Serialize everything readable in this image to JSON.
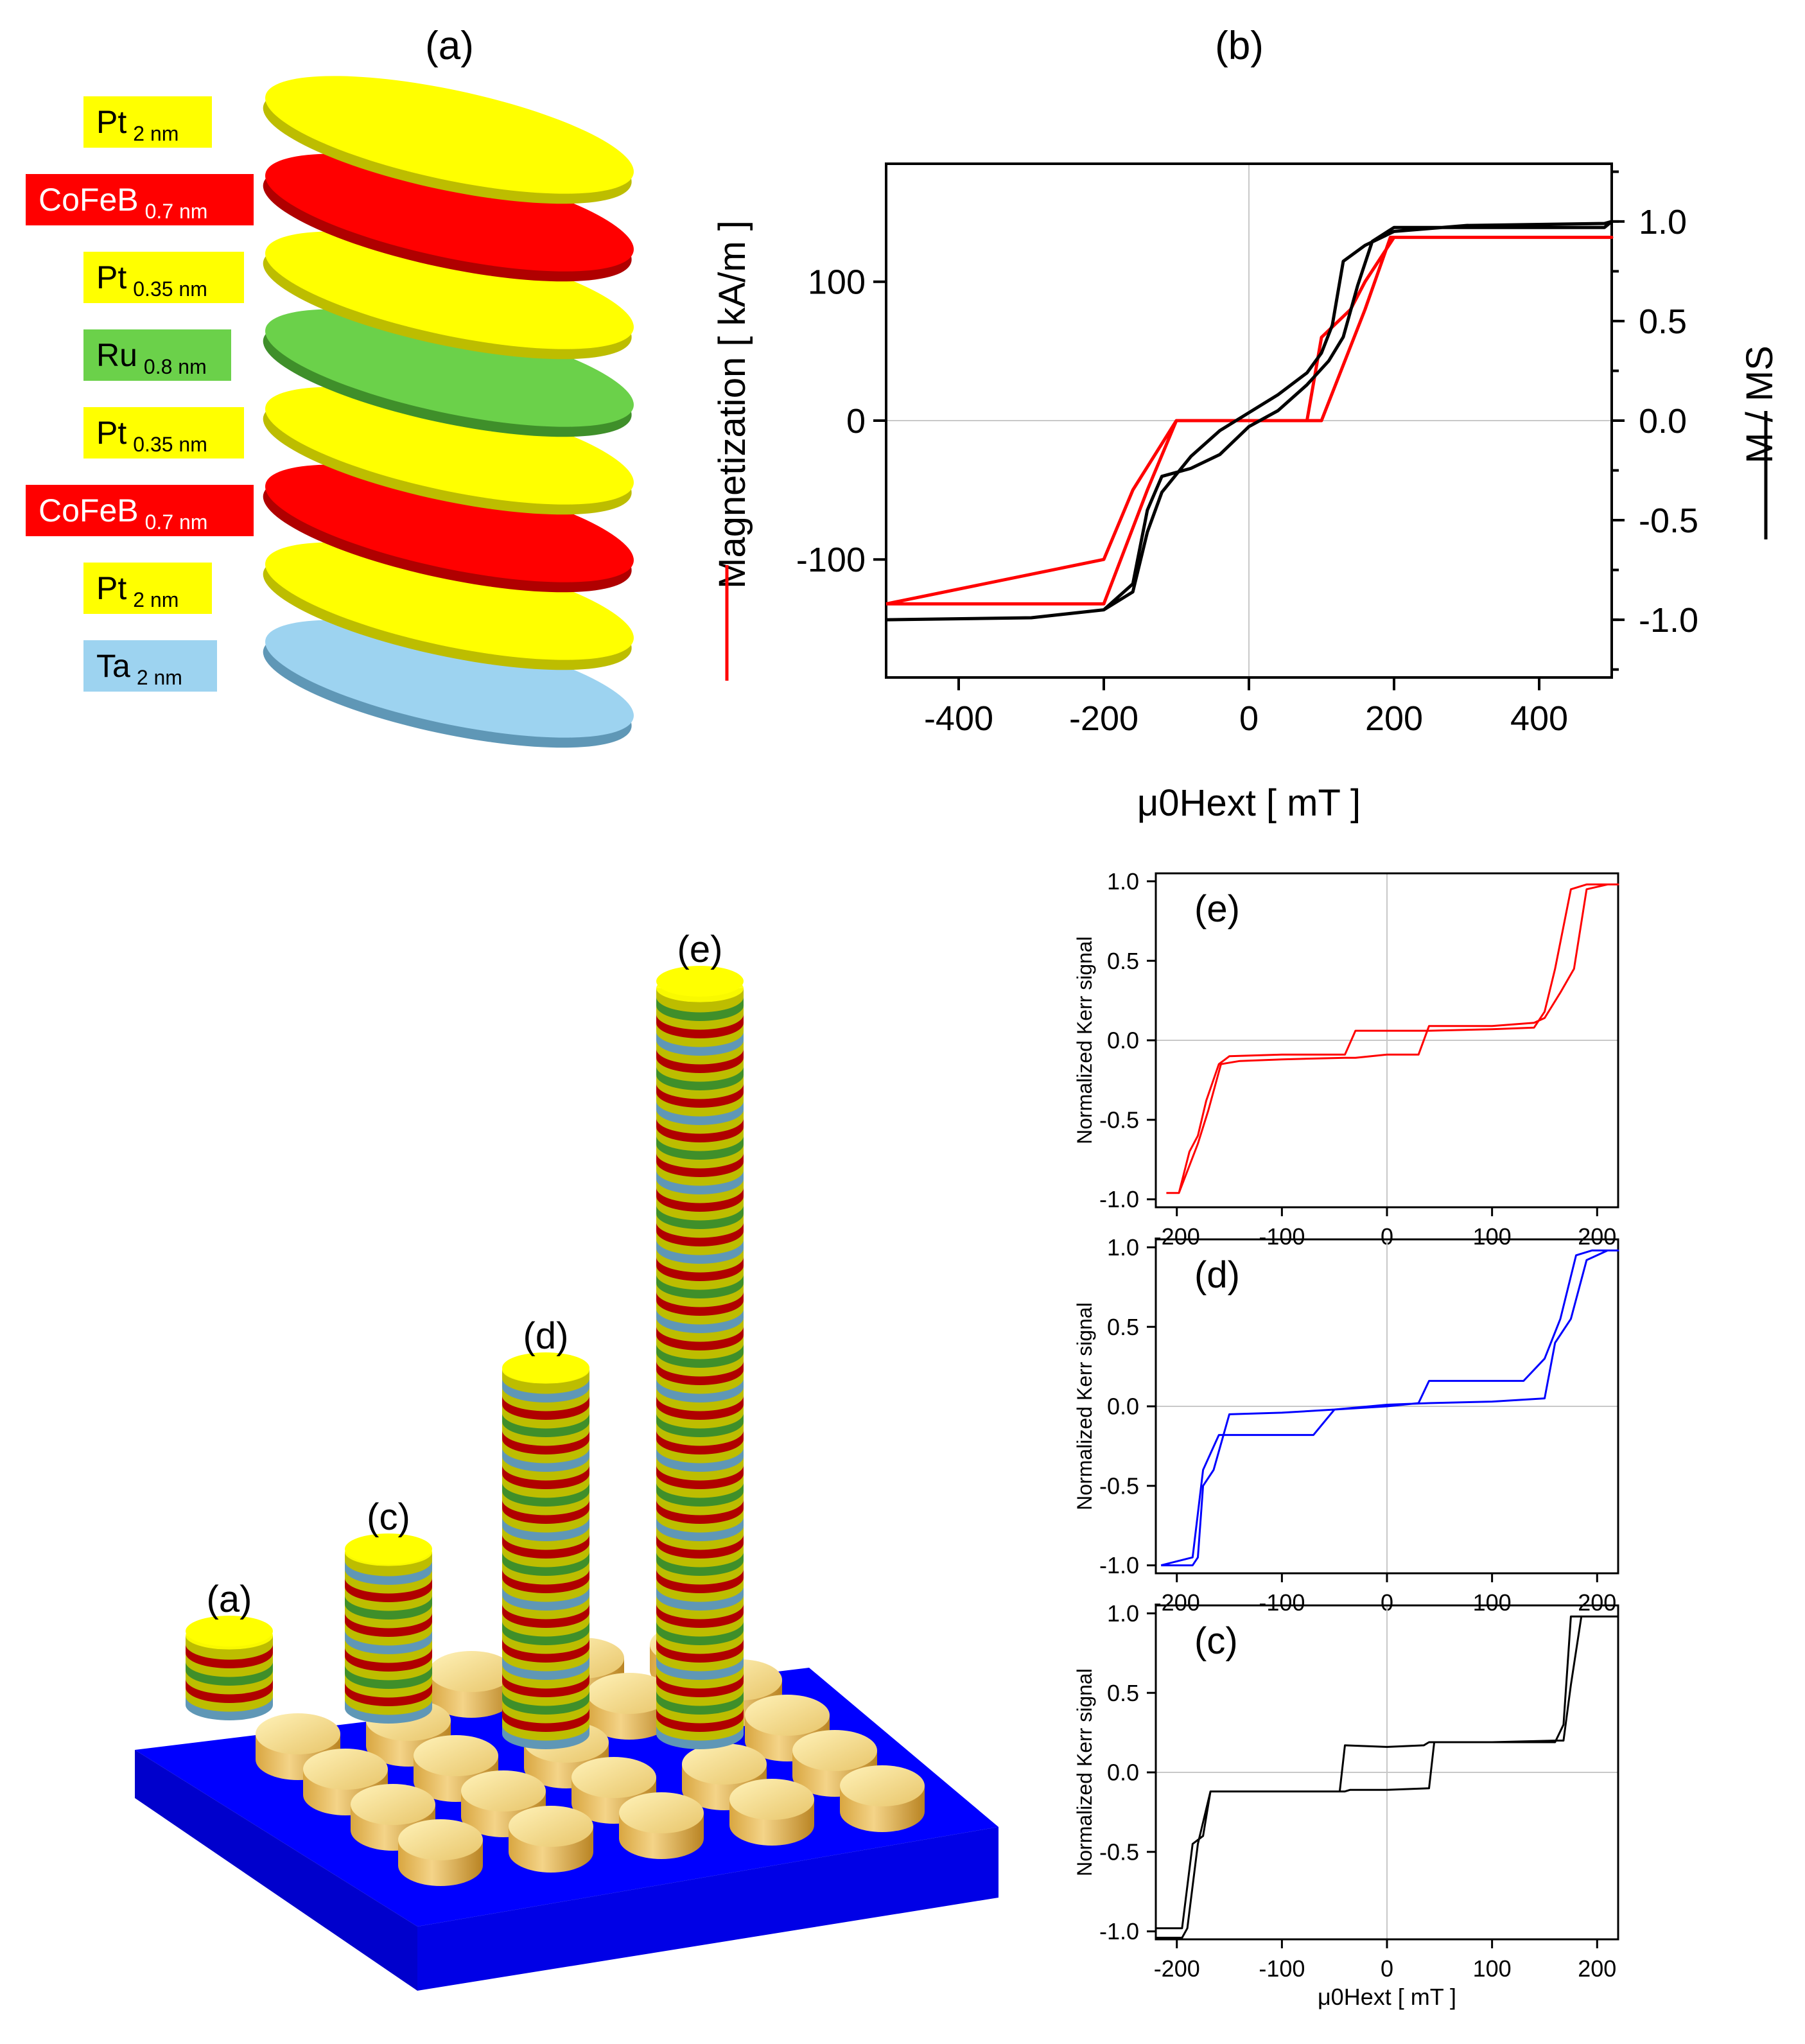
{
  "panel_labels": {
    "a_top": "(a)",
    "b_top": "(b)",
    "a_pillar": "(a)",
    "c_pillar": "(c)",
    "d_pillar": "(d)",
    "e_pillar": "(e)"
  },
  "layers": [
    {
      "name": "Pt",
      "thickness": "2 nm",
      "color": "#ffff00",
      "edge": "#bdbd00"
    },
    {
      "name": "CoFeB",
      "thickness": "0.7 nm",
      "color": "#ff0000",
      "edge": "#b00000"
    },
    {
      "name": "Pt",
      "thickness": "0.35 nm",
      "color": "#ffff00",
      "edge": "#bdbd00"
    },
    {
      "name": "Ru",
      "thickness": "0.8 nm",
      "color": "#6bd14a",
      "edge": "#3f8f2a"
    },
    {
      "name": "Pt",
      "thickness": "0.35 nm",
      "color": "#ffff00",
      "edge": "#bdbd00"
    },
    {
      "name": "CoFeB",
      "thickness": "0.7 nm",
      "color": "#ff0000",
      "edge": "#b00000"
    },
    {
      "name": "Pt",
      "thickness": "2 nm",
      "color": "#ffff00",
      "edge": "#bdbd00"
    },
    {
      "name": "Ta",
      "thickness": "2 nm",
      "color": "#9dd3f0",
      "edge": "#5f97b6"
    }
  ],
  "chart_data": [
    {
      "id": "b",
      "type": "line",
      "title": "(b)",
      "xlabel": "μ0Hext [ mT ]",
      "ylabel": "Magnetization [ kA/m ]",
      "y2label": "M / MS",
      "xlim": [
        -500,
        500
      ],
      "ylim": [
        -185,
        185
      ],
      "y2lim": [
        -1.29,
        1.29
      ],
      "xticks": [
        -400,
        -200,
        0,
        200,
        400
      ],
      "yticks": [
        -100,
        0,
        100
      ],
      "y2ticks": [
        -1.0,
        -0.5,
        0.0,
        0.5,
        1.0
      ],
      "xtick_labels": [
        "-400",
        "-200",
        "0",
        "200",
        "400"
      ],
      "ytick_labels": [
        "-100",
        "0",
        "100"
      ],
      "y2tick_labels": [
        "-1.0",
        "-0.5",
        "0.0",
        "0.5",
        "1.0"
      ],
      "series": [
        {
          "name": "Magnetization",
          "axis": "left",
          "color": "#ff0000",
          "x": [
            -500,
            -200,
            -140,
            -100,
            -50,
            0,
            60,
            100,
            160,
            195,
            500,
            490,
            200,
            160,
            140,
            100,
            80,
            0,
            -60,
            -100,
            -160,
            -200,
            -500
          ],
          "y": [
            -132,
            -132,
            -50,
            0,
            0,
            0,
            0,
            0,
            80,
            132,
            132,
            132,
            132,
            100,
            80,
            60,
            0,
            0,
            0,
            0,
            -50,
            -100,
            -132
          ]
        },
        {
          "name": "M / MS",
          "axis": "right",
          "color": "#000000",
          "x": [
            -500,
            -300,
            -200,
            -160,
            -140,
            -120,
            -80,
            -40,
            0,
            40,
            80,
            110,
            130,
            150,
            170,
            200,
            300,
            490,
            500,
            490,
            300,
            200,
            160,
            130,
            115,
            100,
            80,
            40,
            0,
            -40,
            -80,
            -100,
            -120,
            -140,
            -160,
            -200,
            -300,
            -500
          ],
          "y": [
            -1.0,
            -0.99,
            -0.95,
            -0.82,
            -0.45,
            -0.28,
            -0.24,
            -0.17,
            -0.03,
            0.05,
            0.18,
            0.3,
            0.42,
            0.68,
            0.9,
            0.97,
            0.97,
            0.97,
            1.0,
            0.99,
            0.98,
            0.95,
            0.88,
            0.8,
            0.48,
            0.34,
            0.24,
            0.13,
            0.04,
            -0.05,
            -0.18,
            -0.27,
            -0.36,
            -0.56,
            -0.86,
            -0.95,
            -0.99,
            -1.0
          ]
        }
      ]
    },
    {
      "id": "e",
      "type": "line",
      "title": "(e)",
      "xlabel": "",
      "ylabel": "Normalized Kerr signal",
      "xlim": [
        -220,
        220
      ],
      "ylim": [
        -1.05,
        1.05
      ],
      "xticks": [
        -200,
        -100,
        0,
        100,
        200
      ],
      "yticks": [
        -1.0,
        -0.5,
        0.0,
        0.5,
        1.0
      ],
      "xtick_labels": [
        "-200",
        "-100",
        "0",
        "100",
        "200"
      ],
      "ytick_labels": [
        "-1.0",
        "-0.5",
        "0.0",
        "0.5",
        "1.0"
      ],
      "series": [
        {
          "name": "loop",
          "color": "#ff0000",
          "x": [
            -210,
            -198,
            -188,
            -180,
            -172,
            -160,
            -150,
            -100,
            -40,
            -30,
            0,
            30,
            40,
            100,
            140,
            150,
            160,
            175,
            190,
            220,
            210,
            190,
            178,
            165,
            150,
            140,
            100,
            40,
            30,
            0,
            -30,
            -40,
            -100,
            -140,
            -158,
            -170,
            -180,
            -198,
            -210
          ],
          "x_note": "",
          "y": [
            -0.96,
            -0.96,
            -0.7,
            -0.6,
            -0.38,
            -0.15,
            -0.1,
            -0.09,
            -0.09,
            0.06,
            0.06,
            0.06,
            0.06,
            0.07,
            0.08,
            0.18,
            0.45,
            0.95,
            0.98,
            0.98,
            0.98,
            0.95,
            0.45,
            0.3,
            0.14,
            0.11,
            0.09,
            0.09,
            -0.09,
            -0.09,
            -0.11,
            -0.11,
            -0.12,
            -0.13,
            -0.15,
            -0.44,
            -0.65,
            -0.96,
            -0.96
          ]
        }
      ]
    },
    {
      "id": "d",
      "type": "line",
      "title": "(d)",
      "xlabel": "",
      "ylabel": "Normalized Kerr signal",
      "xlim": [
        -220,
        220
      ],
      "ylim": [
        -1.05,
        1.05
      ],
      "xticks": [
        -200,
        -100,
        0,
        100,
        200
      ],
      "yticks": [
        -1.0,
        -0.5,
        0.0,
        0.5,
        1.0
      ],
      "xtick_labels": [
        "-200",
        "-100",
        "0",
        "100",
        "200"
      ],
      "ytick_labels": [
        "-1.0",
        "-0.5",
        "0.0",
        "0.5",
        "1.0"
      ],
      "series": [
        {
          "name": "loop",
          "color": "#0000ff",
          "x": [
            -215,
            -185,
            -180,
            -175,
            -165,
            -150,
            -100,
            -50,
            0,
            30,
            40,
            100,
            130,
            150,
            165,
            180,
            195,
            220,
            210,
            190,
            175,
            160,
            150,
            100,
            40,
            0,
            -50,
            -70,
            -100,
            -140,
            -150,
            -160,
            -175,
            -185,
            -215
          ],
          "y": [
            -1.0,
            -1.0,
            -0.95,
            -0.5,
            -0.4,
            -0.05,
            -0.04,
            -0.02,
            0.0,
            0.02,
            0.16,
            0.16,
            0.16,
            0.3,
            0.55,
            0.95,
            0.98,
            0.98,
            0.98,
            0.92,
            0.55,
            0.4,
            0.05,
            0.03,
            0.02,
            0.01,
            -0.02,
            -0.18,
            -0.18,
            -0.18,
            -0.18,
            -0.18,
            -0.4,
            -0.95,
            -1.0
          ]
        }
      ]
    },
    {
      "id": "c",
      "type": "line",
      "title": "(c)",
      "xlabel": "μ0Hext [ mT ]",
      "ylabel": "Normalized Kerr signal",
      "xlim": [
        -220,
        220
      ],
      "ylim": [
        -1.05,
        1.05
      ],
      "xticks": [
        -200,
        -100,
        0,
        100,
        200
      ],
      "yticks": [
        -1.0,
        -0.5,
        0.0,
        0.5,
        1.0
      ],
      "xtick_labels": [
        "-200",
        "-100",
        "0",
        "100",
        "200"
      ],
      "ytick_labels": [
        "-1.0",
        "-0.5",
        "0.0",
        "0.5",
        "1.0"
      ],
      "series": [
        {
          "name": "loop",
          "color": "#000000",
          "x": [
            -220,
            -195,
            -190,
            -180,
            -168,
            -160,
            -100,
            -45,
            -40,
            0,
            35,
            40,
            100,
            160,
            168,
            175,
            185,
            220,
            210,
            185,
            175,
            168,
            160,
            100,
            45,
            40,
            0,
            -35,
            -40,
            -100,
            -160,
            -168,
            -175,
            -185,
            -195,
            -220
          ],
          "y": [
            -1.04,
            -1.04,
            -0.98,
            -0.45,
            -0.12,
            -0.12,
            -0.12,
            -0.12,
            0.17,
            0.16,
            0.17,
            0.19,
            0.19,
            0.19,
            0.3,
            0.98,
            0.98,
            0.98,
            0.98,
            0.98,
            0.55,
            0.2,
            0.2,
            0.19,
            0.19,
            -0.1,
            -0.11,
            -0.11,
            -0.12,
            -0.12,
            -0.12,
            -0.12,
            -0.4,
            -0.45,
            -0.98,
            -0.98
          ]
        }
      ]
    }
  ]
}
